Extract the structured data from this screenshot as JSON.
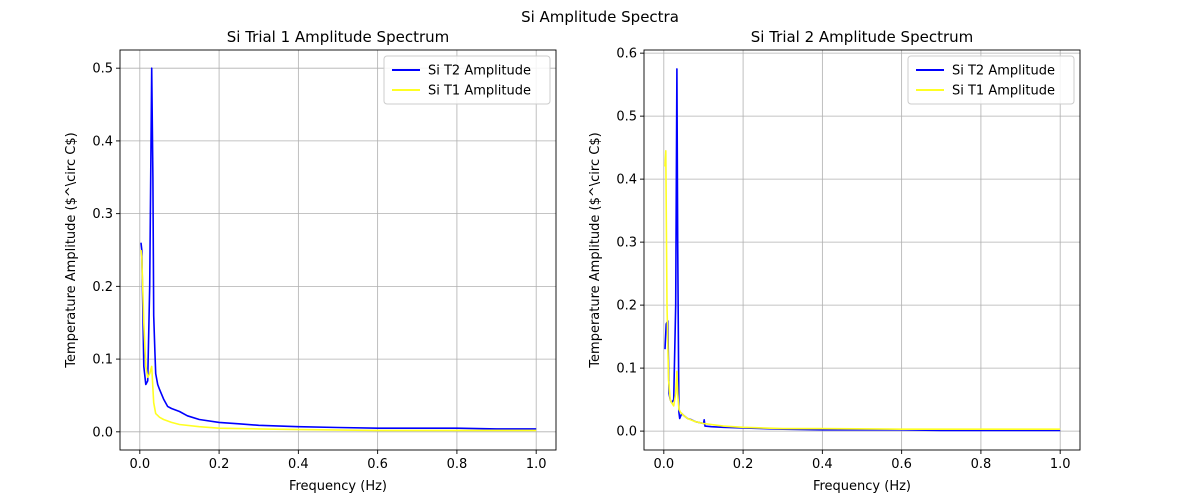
{
  "figure": {
    "suptitle": "Si Amplitude Spectra"
  },
  "chart_data": [
    {
      "type": "line",
      "title": "Si Trial 1 Amplitude Spectrum",
      "xlabel": "Frequency (Hz)",
      "ylabel": "Temperature Amplitude ($^\\circ C$)",
      "xlim": [
        -0.05,
        1.05
      ],
      "ylim": [
        -0.025,
        0.525
      ],
      "xticks": [
        0.0,
        0.2,
        0.4,
        0.6,
        0.8,
        1.0
      ],
      "xtick_labels": [
        "0.0",
        "0.2",
        "0.4",
        "0.6",
        "0.8",
        "1.0"
      ],
      "yticks": [
        0.0,
        0.1,
        0.2,
        0.3,
        0.4,
        0.5
      ],
      "ytick_labels": [
        "0.0",
        "0.1",
        "0.2",
        "0.3",
        "0.4",
        "0.5"
      ],
      "grid": true,
      "legend_position": "top-right",
      "series": [
        {
          "name": "Si T2 Amplitude",
          "color": "#0000ff",
          "x": [
            0.003,
            0.005,
            0.01,
            0.015,
            0.02,
            0.025,
            0.03,
            0.033,
            0.035,
            0.038,
            0.04,
            0.045,
            0.05,
            0.06,
            0.07,
            0.08,
            0.09,
            0.1,
            0.12,
            0.15,
            0.2,
            0.25,
            0.3,
            0.4,
            0.5,
            0.6,
            0.7,
            0.8,
            0.9,
            1.0
          ],
          "y": [
            0.26,
            0.25,
            0.09,
            0.065,
            0.07,
            0.2,
            0.5,
            0.35,
            0.16,
            0.11,
            0.08,
            0.065,
            0.058,
            0.045,
            0.035,
            0.032,
            0.03,
            0.028,
            0.022,
            0.017,
            0.013,
            0.011,
            0.009,
            0.007,
            0.006,
            0.005,
            0.005,
            0.005,
            0.004,
            0.004
          ]
        },
        {
          "name": "Si T1 Amplitude",
          "color": "#ffff22",
          "x": [
            0.003,
            0.005,
            0.01,
            0.015,
            0.02,
            0.025,
            0.03,
            0.035,
            0.04,
            0.05,
            0.06,
            0.08,
            0.1,
            0.15,
            0.2,
            0.3,
            0.4,
            0.6,
            0.8,
            1.0
          ],
          "y": [
            0.25,
            0.24,
            0.15,
            0.09,
            0.075,
            0.08,
            0.09,
            0.04,
            0.025,
            0.02,
            0.017,
            0.013,
            0.01,
            0.007,
            0.005,
            0.004,
            0.003,
            0.002,
            0.002,
            0.002
          ]
        }
      ]
    },
    {
      "type": "line",
      "title": "Si Trial 2 Amplitude Spectrum",
      "xlabel": "Frequency (Hz)",
      "ylabel": "Temperature Amplitude ($^\\circ C$)",
      "xlim": [
        -0.05,
        1.05
      ],
      "ylim": [
        -0.03,
        0.605
      ],
      "xticks": [
        0.0,
        0.2,
        0.4,
        0.6,
        0.8,
        1.0
      ],
      "xtick_labels": [
        "0.0",
        "0.2",
        "0.4",
        "0.6",
        "0.8",
        "1.0"
      ],
      "yticks": [
        0.0,
        0.1,
        0.2,
        0.3,
        0.4,
        0.5,
        0.6
      ],
      "ytick_labels": [
        "0.0",
        "0.1",
        "0.2",
        "0.3",
        "0.4",
        "0.5",
        "0.6"
      ],
      "grid": true,
      "legend_position": "top-right",
      "series": [
        {
          "name": "Si T2 Amplitude",
          "color": "#0000ff",
          "x": [
            0.003,
            0.006,
            0.01,
            0.013,
            0.016,
            0.02,
            0.025,
            0.03,
            0.033,
            0.035,
            0.038,
            0.04,
            0.045,
            0.05,
            0.06,
            0.07,
            0.08,
            0.1,
            0.102,
            0.104,
            0.12,
            0.15,
            0.2,
            0.25,
            0.3,
            0.4,
            0.5,
            0.6,
            0.7,
            0.8,
            0.9,
            1.0
          ],
          "y": [
            0.13,
            0.17,
            0.175,
            0.06,
            0.05,
            0.045,
            0.05,
            0.2,
            0.575,
            0.3,
            0.03,
            0.02,
            0.028,
            0.025,
            0.02,
            0.018,
            0.015,
            0.012,
            0.018,
            0.008,
            0.007,
            0.006,
            0.005,
            0.004,
            0.003,
            0.002,
            0.002,
            0.002,
            0.001,
            0.001,
            0.001,
            0.001
          ]
        },
        {
          "name": "Si T1 Amplitude",
          "color": "#ffff22",
          "x": [
            0.003,
            0.005,
            0.008,
            0.012,
            0.016,
            0.02,
            0.025,
            0.03,
            0.033,
            0.035,
            0.038,
            0.042,
            0.05,
            0.06,
            0.08,
            0.1,
            0.15,
            0.2,
            0.3,
            0.4,
            0.6,
            0.8,
            1.0
          ],
          "y": [
            0.42,
            0.445,
            0.2,
            0.08,
            0.05,
            0.045,
            0.04,
            0.06,
            0.095,
            0.06,
            0.035,
            0.03,
            0.025,
            0.02,
            0.015,
            0.012,
            0.008,
            0.006,
            0.004,
            0.004,
            0.003,
            0.003,
            0.003
          ]
        }
      ]
    }
  ]
}
